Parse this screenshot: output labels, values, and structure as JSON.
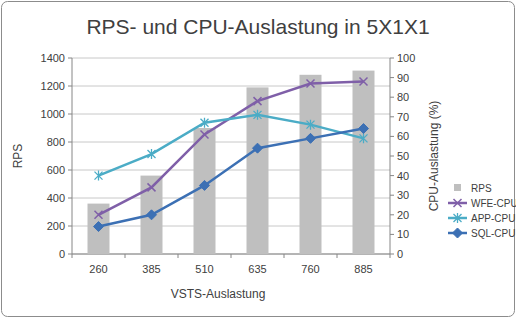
{
  "chart_data": {
    "type": "bar",
    "title": "RPS- und CPU-Auslastung in 5X1X1",
    "x_label": "VSTS-Auslastung",
    "y_label": "RPS",
    "y2_label": "CPU-Auslastung (%)",
    "categories": [
      "260",
      "385",
      "510",
      "635",
      "760",
      "885"
    ],
    "series": [
      {
        "name": "RPS",
        "type": "bar",
        "color": "#bfbfbf",
        "values": [
          360,
          560,
          900,
          1190,
          1280,
          1310
        ]
      },
      {
        "name": "WFE-CPU",
        "type": "line",
        "axis": "y2",
        "color": "#7f5fa8",
        "marker": "x",
        "values": [
          20,
          34,
          61,
          78,
          87,
          88
        ]
      },
      {
        "name": "APP-CPU",
        "type": "line",
        "axis": "y2",
        "color": "#4bacc6",
        "marker": "star",
        "values": [
          40,
          51,
          67,
          71,
          66,
          59
        ]
      },
      {
        "name": "SQL-CPU",
        "type": "line",
        "axis": "y2",
        "color": "#3c70b4",
        "marker": "diamond",
        "values": [
          14,
          20,
          35,
          54,
          59,
          64
        ]
      }
    ],
    "ylim": [
      0,
      1400
    ],
    "yticks": [
      0,
      200,
      400,
      600,
      800,
      1000,
      1200,
      1400
    ],
    "y2lim": [
      0,
      100
    ],
    "y2ticks": [
      0,
      10,
      20,
      30,
      40,
      50,
      60,
      70,
      80,
      90,
      100
    ],
    "grid": true,
    "legend": "right"
  }
}
